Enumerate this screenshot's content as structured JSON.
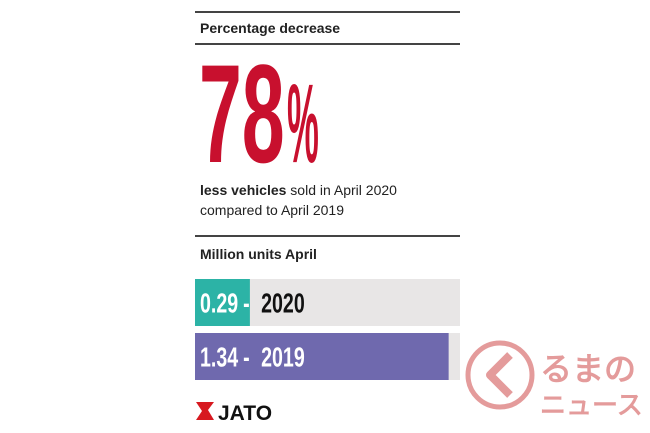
{
  "header": {
    "title": "Percentage decrease"
  },
  "stat": {
    "value": 78,
    "unit": "%"
  },
  "description": {
    "bold": "less vehicles",
    "rest": "sold in April 2020",
    "line2": "compared to April 2019"
  },
  "chart_data": {
    "type": "bar",
    "orientation": "horizontal",
    "title": "Million units April",
    "categories": [
      "2020",
      "2019"
    ],
    "values": [
      0.29,
      1.34
    ],
    "colors": [
      "#2cb3a6",
      "#6f69ae"
    ],
    "separator": "-",
    "xlim": [
      0,
      1.4
    ]
  },
  "logo": {
    "text": "JATO"
  },
  "watermark": {
    "line1": "るまの",
    "line2": "ニュース"
  }
}
